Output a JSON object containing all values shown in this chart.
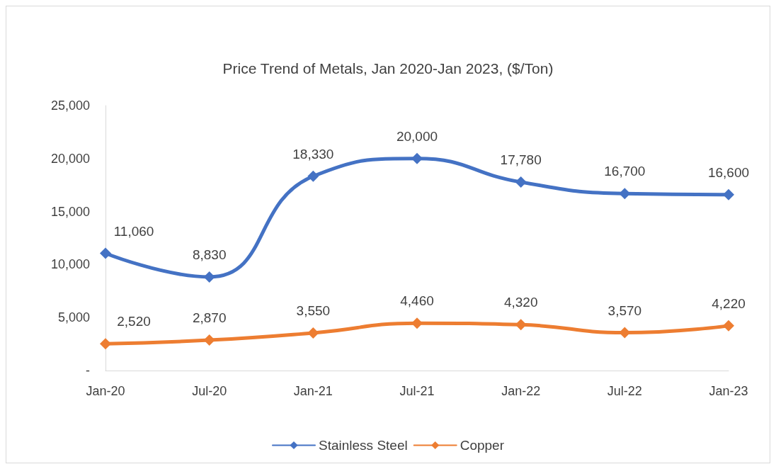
{
  "chart_data": {
    "type": "line",
    "title": "Price Trend of Metals, Jan 2020-Jan 2023, ($/Ton)",
    "categories": [
      "Jan-20",
      "Jul-20",
      "Jan-21",
      "Jul-21",
      "Jan-22",
      "Jul-22",
      "Jan-23"
    ],
    "series": [
      {
        "name": "Stainless Steel",
        "color": "#4472c4",
        "values": [
          11060,
          8830,
          18330,
          20000,
          17780,
          16700,
          16600
        ],
        "value_labels": [
          "11,060",
          "8,830",
          "18,330",
          "20,000",
          "17,780",
          "16,700",
          "16,600"
        ]
      },
      {
        "name": "Copper",
        "color": "#ed7d31",
        "values": [
          2520,
          2870,
          3550,
          4460,
          4320,
          3570,
          4220
        ],
        "value_labels": [
          "2,520",
          "2,870",
          "3,550",
          "4,460",
          "4,320",
          "3,570",
          "4,220"
        ]
      }
    ],
    "ylim": [
      0,
      25000
    ],
    "yticks": [
      {
        "value": 0,
        "label": "-"
      },
      {
        "value": 5000,
        "label": "5,000"
      },
      {
        "value": 10000,
        "label": "10,000"
      },
      {
        "value": 15000,
        "label": "15,000"
      },
      {
        "value": 20000,
        "label": "20,000"
      },
      {
        "value": 25000,
        "label": "25,000"
      }
    ],
    "grid": false,
    "legend": "bottom",
    "marker": "diamond",
    "line_style": "solid"
  }
}
